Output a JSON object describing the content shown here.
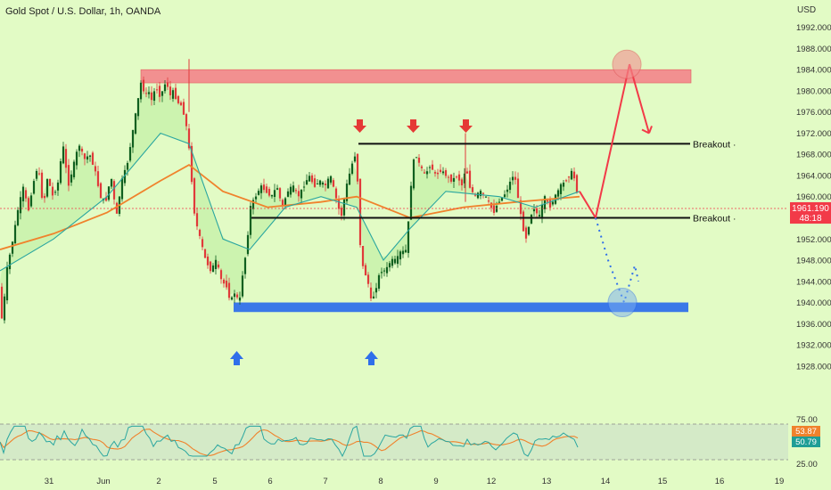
{
  "header": {
    "title": "Gold Spot / U.S. Dollar, 1h, OANDA"
  },
  "currency": "USD",
  "price_axis": {
    "ticks": [
      "1992.000",
      "1988.000",
      "1984.000",
      "1980.000",
      "1976.000",
      "1972.000",
      "1968.000",
      "1964.000",
      "1960.000",
      "1956.000",
      "1952.000",
      "1948.000",
      "1944.000",
      "1940.000",
      "1936.000",
      "1932.000",
      "1928.000"
    ],
    "current_price": "1961.190",
    "countdown": "48:18"
  },
  "rsi_axis": {
    "ticks": [
      "75.00",
      "25.00"
    ],
    "rsi_value": "53.87",
    "ma_value": "50.79"
  },
  "time_axis": {
    "ticks": [
      "31",
      "Jun",
      "2",
      "5",
      "6",
      "7",
      "8",
      "9",
      "12",
      "13",
      "14",
      "15",
      "16",
      "19"
    ]
  },
  "annotations": {
    "breakout_upper": "Breakout",
    "breakout_lower": "Breakout"
  },
  "colors": {
    "background": "#e2fbc5",
    "up_candle": "#0f5f1f",
    "down_candle": "#e03a3a",
    "resistance_zone": "#f29090",
    "support_zone": "#3a78e8",
    "ema_orange": "#f0822c",
    "ma_teal": "#2aa6a0",
    "price_tag": "#f23a48",
    "rsi_tag": "#f0822c",
    "ma_tag": "#1f9e96"
  },
  "chart_data": {
    "type": "candlestick",
    "title": "Gold Spot / U.S. Dollar, 1h, OANDA",
    "y_unit": "USD",
    "ylim": [
      1926,
      1996
    ],
    "x_tick_labels": [
      "31",
      "Jun",
      "2",
      "5",
      "6",
      "7",
      "8",
      "9",
      "12",
      "13",
      "14",
      "15",
      "16",
      "19"
    ],
    "price_path": [
      [
        0,
        1944
      ],
      [
        4,
        1936
      ],
      [
        9,
        1946
      ],
      [
        16,
        1952
      ],
      [
        22,
        1958
      ],
      [
        28,
        1962
      ],
      [
        33,
        1957
      ],
      [
        38,
        1962
      ],
      [
        44,
        1966
      ],
      [
        50,
        1958
      ],
      [
        55,
        1964
      ],
      [
        60,
        1960
      ],
      [
        66,
        1962
      ],
      [
        72,
        1970
      ],
      [
        78,
        1962
      ],
      [
        84,
        1966
      ],
      [
        90,
        1970
      ],
      [
        96,
        1967
      ],
      [
        102,
        1968
      ],
      [
        108,
        1965
      ],
      [
        114,
        1960
      ],
      [
        120,
        1959
      ],
      [
        126,
        1964
      ],
      [
        132,
        1956
      ],
      [
        138,
        1963
      ],
      [
        144,
        1966
      ],
      [
        150,
        1972
      ],
      [
        156,
        1978
      ],
      [
        160,
        1982
      ],
      [
        164,
        1979
      ],
      [
        168,
        1980
      ],
      [
        172,
        1978
      ],
      [
        176,
        1981
      ],
      [
        180,
        1979
      ],
      [
        184,
        1980
      ],
      [
        188,
        1982
      ],
      [
        192,
        1979
      ],
      [
        196,
        1980
      ],
      [
        200,
        1978
      ],
      [
        206,
        1977
      ],
      [
        212,
        1972
      ],
      [
        216,
        1964
      ],
      [
        220,
        1956
      ],
      [
        226,
        1952
      ],
      [
        232,
        1948
      ],
      [
        238,
        1946
      ],
      [
        244,
        1948
      ],
      [
        250,
        1944
      ],
      [
        256,
        1943
      ],
      [
        260,
        1940
      ],
      [
        264,
        1942
      ],
      [
        270,
        1940
      ],
      [
        274,
        1946
      ],
      [
        278,
        1950
      ],
      [
        282,
        1958
      ],
      [
        288,
        1960
      ],
      [
        294,
        1962
      ],
      [
        300,
        1961
      ],
      [
        306,
        1960
      ],
      [
        312,
        1962
      ],
      [
        318,
        1958
      ],
      [
        324,
        1961
      ],
      [
        330,
        1962
      ],
      [
        336,
        1960
      ],
      [
        342,
        1962
      ],
      [
        348,
        1964
      ],
      [
        354,
        1962
      ],
      [
        360,
        1963
      ],
      [
        366,
        1962
      ],
      [
        372,
        1964
      ],
      [
        378,
        1960
      ],
      [
        384,
        1956
      ],
      [
        390,
        1962
      ],
      [
        396,
        1966
      ],
      [
        400,
        1968
      ],
      [
        404,
        1960
      ],
      [
        406,
        1948
      ],
      [
        410,
        1946
      ],
      [
        414,
        1944
      ],
      [
        418,
        1940
      ],
      [
        422,
        1942
      ],
      [
        428,
        1946
      ],
      [
        434,
        1946
      ],
      [
        440,
        1948
      ],
      [
        446,
        1948
      ],
      [
        452,
        1950
      ],
      [
        456,
        1949
      ],
      [
        460,
        1956
      ],
      [
        464,
        1966
      ],
      [
        468,
        1968
      ],
      [
        472,
        1966
      ],
      [
        478,
        1964
      ],
      [
        484,
        1966
      ],
      [
        490,
        1964
      ],
      [
        496,
        1965
      ],
      [
        502,
        1964
      ],
      [
        508,
        1963
      ],
      [
        514,
        1964
      ],
      [
        520,
        1962
      ],
      [
        524,
        1966
      ],
      [
        528,
        1962
      ],
      [
        534,
        1960
      ],
      [
        540,
        1961
      ],
      [
        546,
        1960
      ],
      [
        552,
        1958
      ],
      [
        556,
        1957
      ],
      [
        560,
        1959
      ],
      [
        566,
        1960
      ],
      [
        572,
        1962
      ],
      [
        576,
        1964
      ],
      [
        580,
        1963
      ],
      [
        584,
        1958
      ],
      [
        588,
        1954
      ],
      [
        592,
        1952
      ],
      [
        596,
        1956
      ],
      [
        600,
        1958
      ],
      [
        606,
        1956
      ],
      [
        612,
        1960
      ],
      [
        618,
        1958
      ],
      [
        624,
        1960
      ],
      [
        630,
        1962
      ],
      [
        636,
        1963
      ],
      [
        640,
        1964
      ],
      [
        644,
        1965
      ],
      [
        648,
        1961
      ]
    ],
    "ema_path": [
      [
        0,
        1950
      ],
      [
        60,
        1953
      ],
      [
        120,
        1957
      ],
      [
        180,
        1963
      ],
      [
        212,
        1966
      ],
      [
        250,
        1961
      ],
      [
        300,
        1958
      ],
      [
        360,
        1959
      ],
      [
        400,
        1960
      ],
      [
        430,
        1958
      ],
      [
        460,
        1956
      ],
      [
        520,
        1958
      ],
      [
        580,
        1959
      ],
      [
        650,
        1960
      ]
    ],
    "ma_path": [
      [
        0,
        1946
      ],
      [
        60,
        1952
      ],
      [
        120,
        1960
      ],
      [
        180,
        1972
      ],
      [
        212,
        1970
      ],
      [
        250,
        1952
      ],
      [
        280,
        1950
      ],
      [
        320,
        1958
      ],
      [
        360,
        1960
      ],
      [
        400,
        1958
      ],
      [
        430,
        1948
      ],
      [
        460,
        1954
      ],
      [
        500,
        1961
      ],
      [
        560,
        1960
      ],
      [
        600,
        1958
      ],
      [
        650,
        1961
      ]
    ],
    "zones": [
      {
        "name": "resistance",
        "y_top": 1984,
        "y_bottom": 1981.5
      },
      {
        "name": "support",
        "y_top": 1940,
        "y_bottom": 1938.2
      }
    ],
    "horizontal_lines": [
      {
        "label": "Breakout",
        "y": 1970
      },
      {
        "label": "Breakout",
        "y": 1956
      }
    ],
    "projection_up": [
      [
        650,
        1961
      ],
      [
        668,
        1956
      ],
      [
        706,
        1985
      ],
      [
        728,
        1972
      ]
    ],
    "projection_down": [
      [
        668,
        1956
      ],
      [
        682,
        1948
      ],
      [
        700,
        1940
      ],
      [
        712,
        1947
      ],
      [
        716,
        1944
      ]
    ],
    "rsi": {
      "ylim": [
        25,
        75
      ],
      "band": [
        25,
        75
      ],
      "value": 53.87,
      "ma_value": 50.79
    }
  }
}
